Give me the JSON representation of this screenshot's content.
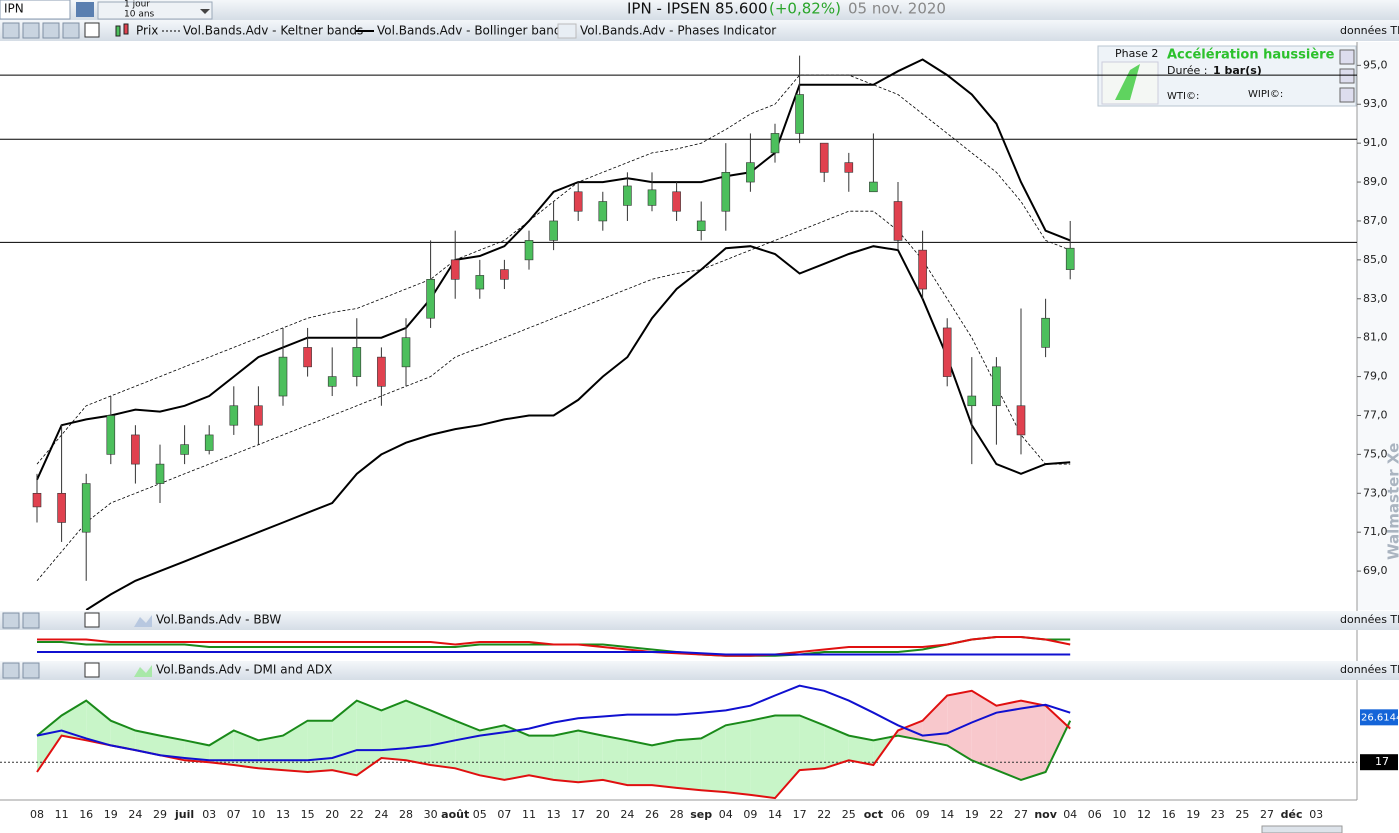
{
  "toolbar": {
    "symbol": "IPN",
    "period": "1 jour",
    "range": "10 ans",
    "title": "IPN - IPSEN",
    "price": "85.600",
    "change": "(+0,82%)",
    "date": "05 nov. 2020",
    "brand": "Walmaster Xe"
  },
  "chart_data": [
    {
      "type": "candlestick",
      "name": "Prix",
      "source": "données TR",
      "categories": [
        "08",
        "11",
        "16",
        "19",
        "24",
        "29",
        "juil",
        "03",
        "07",
        "10",
        "13",
        "15",
        "20",
        "22",
        "24",
        "28",
        "30",
        "août",
        "05",
        "07",
        "11",
        "13",
        "17",
        "20",
        "24",
        "26",
        "28",
        "sep",
        "04",
        "09",
        "14",
        "17",
        "22",
        "25",
        "oct",
        "06",
        "09",
        "14",
        "19",
        "22",
        "27",
        "nov",
        "04",
        "06",
        "10",
        "12",
        "16",
        "19",
        "23",
        "25",
        "27",
        "déc",
        "03"
      ],
      "open": [
        73,
        73,
        71,
        75,
        76,
        73.5,
        75,
        75.2,
        76.5,
        77.5,
        78,
        80.5,
        78.5,
        79,
        80,
        79.5,
        82,
        85,
        83.5,
        84.5,
        85,
        86,
        88.5,
        87,
        87.8,
        87.8,
        88.5,
        86.5,
        87.5,
        89,
        90.5,
        91.5,
        91,
        90,
        88.5,
        88,
        85.5,
        81.5,
        77.5,
        77.5,
        77.5,
        80.5,
        84.5,
        null,
        null,
        null,
        null,
        null,
        null,
        null,
        null,
        null,
        null
      ],
      "high": [
        74,
        76.5,
        74,
        78,
        76.5,
        75.5,
        76.5,
        76.5,
        78.5,
        78.5,
        81.5,
        81.5,
        80.5,
        82,
        80.5,
        82,
        86,
        86.5,
        85,
        85,
        86.5,
        88,
        89,
        88.5,
        89.5,
        89.5,
        89,
        88,
        91,
        91.5,
        92,
        95.5,
        91,
        90.5,
        91.5,
        89,
        86.5,
        82,
        80,
        80,
        82.5,
        83,
        87,
        null,
        null,
        null,
        null,
        null,
        null,
        null,
        null,
        null,
        null
      ],
      "low": [
        71.5,
        70.5,
        68.5,
        74.5,
        73.5,
        72.5,
        74.5,
        75,
        76,
        75.5,
        77.5,
        79,
        78,
        78.5,
        77.5,
        78.5,
        81.5,
        83,
        83,
        83.5,
        84.5,
        85.5,
        87,
        86.5,
        87,
        87.5,
        87,
        86,
        86.5,
        88.5,
        90,
        91,
        89,
        88.5,
        88.5,
        85.5,
        83,
        78.5,
        74.5,
        75.5,
        75,
        80,
        84,
        null,
        null,
        null,
        null,
        null,
        null,
        null,
        null,
        null,
        null
      ],
      "close": [
        72.3,
        71.5,
        73.5,
        77,
        74.5,
        74.5,
        75.5,
        76,
        77.5,
        76.5,
        80,
        79.5,
        79,
        80.5,
        78.5,
        81,
        84,
        84,
        84.2,
        84,
        86,
        87,
        87.5,
        88,
        88.8,
        88.6,
        87.5,
        87,
        89.5,
        90,
        91.5,
        93.5,
        89.5,
        89.5,
        89,
        86,
        83.5,
        79,
        78,
        79.5,
        76,
        82,
        85.6,
        null,
        null,
        null,
        null,
        null,
        null,
        null,
        null,
        null,
        null
      ],
      "up_color": "#4cbf5c",
      "down_color": "#e0414f",
      "bands": [
        {
          "name": "Vol.Bands.Adv - Keltner bands",
          "color": "#000000",
          "dashed": true,
          "upper": [
            74.5,
            76,
            77.5,
            78,
            78.5,
            79,
            79.5,
            80,
            80.5,
            81,
            81.5,
            82,
            82.3,
            82.5,
            83,
            83.5,
            84,
            85,
            85.5,
            86,
            87,
            88,
            89,
            89.5,
            90,
            90.5,
            90.7,
            91,
            91.7,
            92.5,
            93,
            94.5,
            94.5,
            94.5,
            94,
            93.5,
            92.5,
            91.5,
            90.5,
            89.5,
            88,
            86,
            85.5,
            null,
            null,
            null,
            null,
            null,
            null,
            null,
            null,
            null,
            null
          ],
          "lower": [
            68.5,
            70,
            71.5,
            72.5,
            73,
            73.5,
            74,
            74.5,
            75,
            75.5,
            76,
            76.5,
            77,
            77.5,
            78,
            78.5,
            79,
            80,
            80.5,
            81,
            81.5,
            82,
            82.5,
            83,
            83.5,
            84,
            84.3,
            84.5,
            85,
            85.5,
            86,
            86.5,
            87,
            87.5,
            87.5,
            86.5,
            85,
            83,
            81,
            78.5,
            76,
            74.5,
            74.5,
            null,
            null,
            null,
            null,
            null,
            null,
            null,
            null,
            null,
            null
          ]
        },
        {
          "name": "Vol.Bands.Adv - Bollinger bands",
          "color": "#000000",
          "dashed": false,
          "upper": [
            73.7,
            76.5,
            76.8,
            77,
            77.3,
            77.2,
            77.5,
            78,
            79,
            80,
            80.5,
            81,
            81,
            81,
            81,
            81.5,
            83,
            85,
            85.2,
            85.7,
            87,
            88.5,
            89,
            89,
            89.2,
            89,
            89,
            89,
            89.3,
            89.5,
            90.5,
            94,
            94,
            94,
            94,
            94.7,
            95.3,
            94.5,
            93.5,
            92,
            89,
            86.5,
            86,
            null,
            null,
            null,
            null,
            null,
            null,
            null,
            null,
            null,
            null
          ],
          "lower": [
            null,
            null,
            67,
            67.8,
            68.5,
            69,
            69.5,
            70,
            70.5,
            71,
            71.5,
            72,
            72.5,
            74,
            75,
            75.6,
            76,
            76.3,
            76.5,
            76.8,
            77,
            77,
            77.8,
            79,
            80,
            82,
            83.5,
            84.5,
            85.6,
            85.7,
            85.3,
            84.3,
            84.8,
            85.3,
            85.7,
            85.5,
            83,
            80,
            76.5,
            74.5,
            74,
            74.5,
            74.6,
            null,
            null,
            null,
            null,
            null,
            null,
            null,
            null,
            null,
            null
          ]
        }
      ],
      "hlines": [
        94.5,
        91.2,
        85.9
      ],
      "ylim": [
        67,
        96.2
      ],
      "yticks": [
        {
          "value": 69,
          "label": "69,0"
        },
        {
          "value": 71,
          "label": "71,0"
        },
        {
          "value": 73,
          "label": "73,0"
        },
        {
          "value": 75,
          "label": "75,0"
        },
        {
          "value": 77,
          "label": "77,0"
        },
        {
          "value": 79,
          "label": "79,0"
        },
        {
          "value": 81,
          "label": "81,0"
        },
        {
          "value": 83,
          "label": "83,0"
        },
        {
          "value": 85,
          "label": "85,0"
        },
        {
          "value": 87,
          "label": "87,0"
        },
        {
          "value": 89,
          "label": "89,0"
        },
        {
          "value": 91,
          "label": "91,0"
        },
        {
          "value": 93,
          "label": "93,0"
        },
        {
          "value": 95,
          "label": "95,0"
        }
      ],
      "phase": {
        "name": "Vol.Bands.Adv - Phases Indicator",
        "label": "Phase 2",
        "title": "Accélération haussière",
        "duration_label": "Durée :",
        "duration": "1 bar(s)",
        "wti": "WTI©:",
        "wipi": "WIPI©:"
      }
    },
    {
      "type": "line",
      "title": "Vol.Bands.Adv - BBW",
      "source": "données TR",
      "ylim": [
        0,
        10
      ],
      "series": [
        {
          "color": "#1a8a1a",
          "values": [
            6,
            6,
            5,
            5,
            5,
            5,
            5,
            4,
            4,
            4,
            4,
            4,
            4,
            4,
            4,
            4,
            4,
            4,
            5,
            5,
            5,
            5,
            5,
            5,
            4,
            3,
            2,
            1,
            0.5,
            0.5,
            0.5,
            1,
            2,
            2,
            2,
            2,
            3,
            5,
            7,
            8,
            8,
            7,
            7,
            null,
            null,
            null,
            null,
            null,
            null,
            null,
            null,
            null,
            null
          ]
        },
        {
          "color": "#e01010",
          "values": [
            7,
            7,
            7,
            6,
            6,
            6,
            6,
            6,
            6,
            6,
            6,
            6,
            6,
            6,
            6,
            6,
            6,
            5,
            6,
            6,
            6,
            5,
            5,
            4,
            3,
            2,
            1.5,
            1,
            0.5,
            0.5,
            1,
            2,
            3,
            4,
            4,
            4,
            4,
            5,
            7,
            8,
            8,
            7,
            5,
            null,
            null,
            null,
            null,
            null,
            null,
            null,
            null,
            null,
            null
          ]
        },
        {
          "color": "#1010d0",
          "values": [
            2,
            2,
            2,
            2,
            2,
            2,
            2,
            2,
            2,
            2,
            2,
            2,
            2,
            2,
            2,
            2,
            2,
            2,
            2,
            2,
            2,
            2,
            2,
            2,
            2,
            2,
            2,
            1.5,
            1,
            1,
            1,
            1,
            1,
            1,
            1,
            1,
            1,
            1,
            1,
            1,
            1,
            1,
            1,
            null,
            null,
            null,
            null,
            null,
            null,
            null,
            null,
            null,
            null
          ]
        }
      ]
    },
    {
      "type": "line",
      "title": "Vol.Bands.Adv - DMI and ADX",
      "source": "données TR",
      "ylim": [
        8.9,
        34.4
      ],
      "series": [
        {
          "color": "#1a8a1a",
          "values": [
            22.7,
            27.0,
            30.2,
            25.9,
            23.8,
            22.7,
            21.7,
            20.6,
            23.8,
            21.7,
            22.7,
            25.9,
            25.9,
            30.2,
            28.1,
            30.2,
            28.1,
            25.9,
            23.8,
            24.9,
            22.7,
            22.7,
            23.8,
            22.7,
            21.7,
            20.6,
            21.7,
            22.1,
            24.9,
            25.9,
            27.0,
            27.0,
            24.9,
            22.7,
            21.7,
            22.7,
            21.7,
            20.6,
            17.4,
            15.3,
            13.2,
            14.9,
            25.9,
            null,
            null,
            null,
            null,
            null,
            null,
            null,
            null,
            null,
            null
          ]
        },
        {
          "color": "#e01010",
          "values": [
            14.9,
            22.7,
            21.7,
            20.6,
            19.6,
            18.5,
            17.4,
            17.0,
            16.4,
            15.7,
            15.3,
            14.9,
            15.3,
            14.2,
            17.9,
            17.4,
            16.4,
            15.7,
            14.2,
            13.2,
            14.2,
            13.2,
            12.7,
            13.2,
            12.1,
            12.1,
            11.5,
            11.0,
            10.6,
            10.0,
            9.3,
            15.3,
            15.7,
            17.4,
            16.4,
            23.8,
            25.9,
            31.3,
            32.3,
            29.1,
            30.2,
            29.1,
            24.2,
            null,
            null,
            null,
            null,
            null,
            null,
            null,
            null,
            null,
            null
          ]
        },
        {
          "color": "#1010d0",
          "values": [
            22.7,
            23.8,
            22.1,
            20.6,
            19.6,
            18.5,
            17.9,
            17.4,
            17.4,
            17.4,
            17.4,
            17.4,
            17.9,
            19.6,
            19.6,
            20.0,
            20.6,
            21.7,
            22.7,
            23.4,
            24.2,
            25.5,
            26.4,
            26.8,
            27.2,
            27.2,
            27.2,
            27.6,
            28.1,
            29.1,
            31.3,
            33.4,
            32.3,
            30.2,
            27.6,
            24.9,
            22.7,
            23.2,
            25.5,
            27.6,
            28.5,
            29.3,
            27.6,
            null,
            null,
            null,
            null,
            null,
            null,
            null,
            null,
            null,
            null
          ]
        }
      ],
      "last_value": 26.6144,
      "threshold": 17
    }
  ]
}
